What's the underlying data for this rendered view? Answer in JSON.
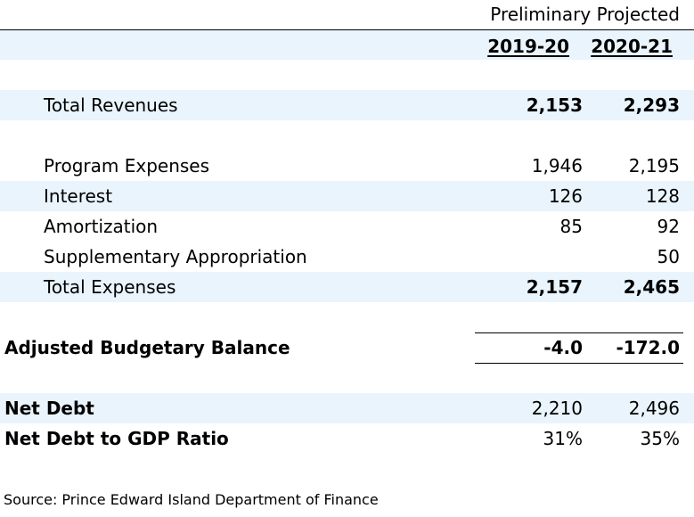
{
  "header": {
    "group_label": "Preliminary Projected",
    "col1": "2019-20",
    "col2": "2020-21"
  },
  "rows": [
    {
      "label": "Total Revenues",
      "v1": "2,153",
      "v2": "2,293"
    },
    {
      "label": "Program Expenses",
      "v1": "1,946",
      "v2": "2,195"
    },
    {
      "label": "Interest",
      "v1": "126",
      "v2": "128"
    },
    {
      "label": "Amortization",
      "v1": "85",
      "v2": "92"
    },
    {
      "label": "Supplementary Appropriation",
      "v1": "",
      "v2": "50"
    },
    {
      "label": "Total Expenses",
      "v1": "2,157",
      "v2": "2,465"
    },
    {
      "label": "Adjusted Budgetary Balance",
      "v1": "-4.0",
      "v2": "-172.0"
    },
    {
      "label": "Net Debt",
      "v1": "2,210",
      "v2": "2,496"
    },
    {
      "label": "Net Debt to GDP Ratio",
      "v1": "31%",
      "v2": "35%"
    }
  ],
  "source": "Source: Prince Edward Island Department of Finance",
  "colors": {
    "band": "#eaf4fc",
    "rule": "#000000"
  }
}
